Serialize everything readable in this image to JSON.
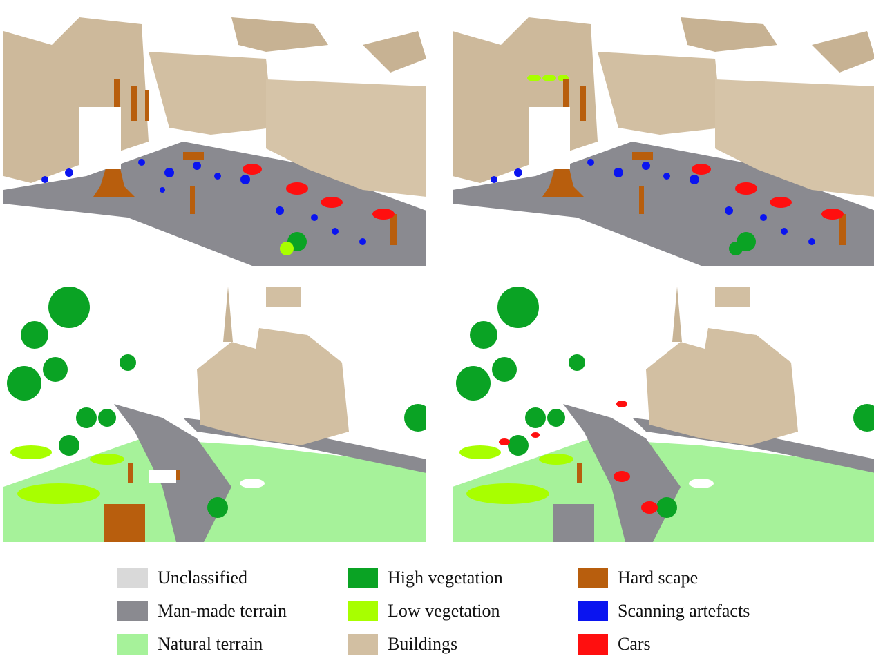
{
  "colors": {
    "unclassified": "#d9d9d9",
    "man_made_terrain": "#8a8a90",
    "natural_terrain": "#a6f29a",
    "high_vegetation": "#0aa324",
    "low_vegetation": "#a8ff00",
    "buildings": "#d2bfa2",
    "hard_scape": "#b85e0d",
    "scanning_artefacts": "#0a14f0",
    "cars": "#ff0f0f"
  },
  "legend": {
    "unclassified": "Unclassified",
    "man_made_terrain": "Man-made terrain",
    "natural_terrain": "Natural terrain",
    "high_vegetation": "High vegetation",
    "low_vegetation": "Low vegetation",
    "buildings": "Buildings",
    "hard_scape": "Hard scape",
    "scanning_artefacts": "Scanning artefacts",
    "cars": "Cars"
  }
}
